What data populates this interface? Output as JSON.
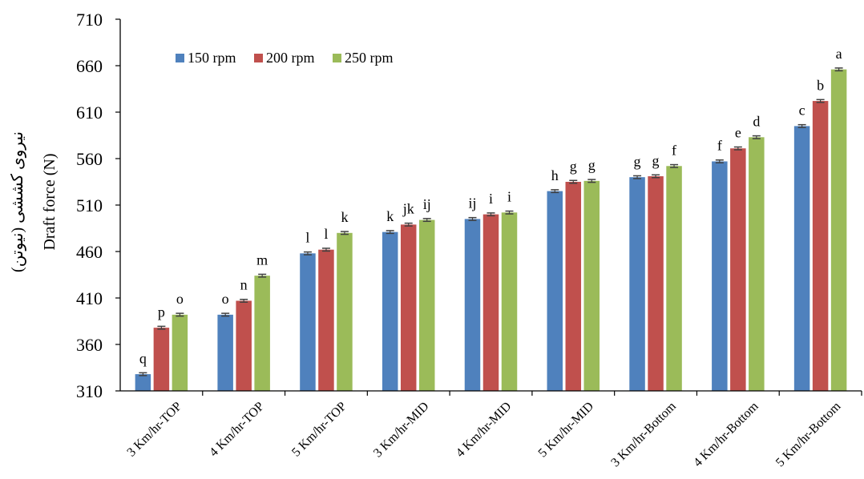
{
  "colors": {
    "series": [
      "#4f81bd",
      "#c0504d",
      "#9bbb59"
    ],
    "axis": "#000000",
    "error_bar": "#404040"
  },
  "chart_data": {
    "type": "bar",
    "ylabel_fa": "نیروی کششی (نیوتن)",
    "ylabel_en": "Draft force (N)",
    "ylim": [
      310,
      710
    ],
    "yticks": [
      310,
      360,
      410,
      460,
      510,
      560,
      610,
      660,
      710
    ],
    "grid": false,
    "legend_position": "top-left",
    "categories": [
      "3 Km/hr-TOP",
      "4 Km/hr-TOP",
      "5 Km/hr-TOP",
      "3 Km/hr-MID",
      "4 Km/hr-MID",
      "5 Km/hr-MID",
      "3 Km/hr-Bottom",
      "4 Km/hr-Bottom",
      "5 Km/hr-Bottom"
    ],
    "series": [
      {
        "name": "150 rpm",
        "values": [
          328,
          392,
          458,
          481,
          495,
          525,
          540,
          557,
          595
        ],
        "labels": [
          "q",
          "o",
          "l",
          "k",
          "ij",
          "h",
          "g",
          "f",
          "c"
        ]
      },
      {
        "name": "200 rpm",
        "values": [
          378,
          407,
          462,
          489,
          500,
          535,
          541,
          571,
          622
        ],
        "labels": [
          "p",
          "n",
          "l",
          "jk",
          "i",
          "g",
          "g",
          "e",
          "b"
        ]
      },
      {
        "name": "250 rpm",
        "values": [
          392,
          434,
          480,
          494,
          502,
          536,
          552,
          583,
          656
        ],
        "labels": [
          "o",
          "m",
          "k",
          "ij",
          "i",
          "g",
          "f",
          "d",
          "a"
        ]
      }
    ]
  }
}
